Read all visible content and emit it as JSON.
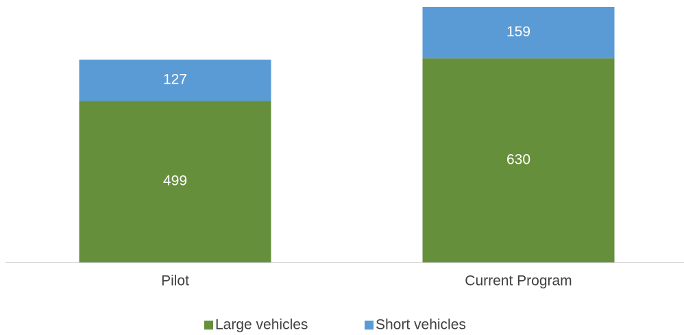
{
  "chart_data": {
    "type": "stacked_bar",
    "categories": [
      "Pilot",
      "Current Program"
    ],
    "series": [
      {
        "name": "Large vehicles",
        "color": "#668f3c",
        "values": [
          499,
          630
        ]
      },
      {
        "name": "Short vehicles",
        "color": "#5b9bd5",
        "values": [
          127,
          159
        ]
      }
    ],
    "legend": "bottom"
  }
}
